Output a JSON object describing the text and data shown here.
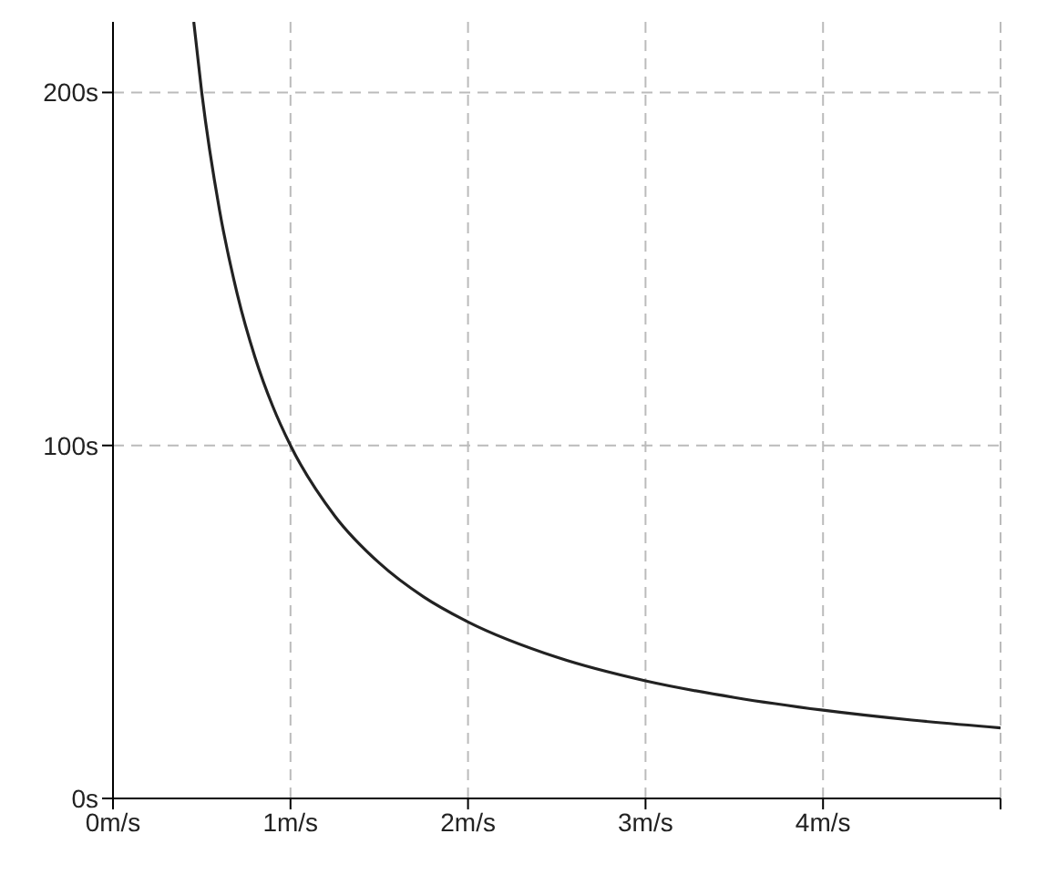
{
  "chart_data": {
    "type": "line",
    "x": [
      0.455,
      0.5,
      0.6,
      0.7,
      0.8,
      0.9,
      1,
      1.25,
      1.5,
      1.75,
      2,
      2.5,
      3,
      3.5,
      4,
      4.5,
      5
    ],
    "series": [
      {
        "color": "#222222",
        "values": [
          220,
          200,
          166.7,
          142.9,
          125,
          111.1,
          100,
          80,
          66.7,
          57.1,
          50,
          40,
          33.3,
          28.6,
          25,
          22.2,
          20
        ]
      }
    ],
    "xlim": [
      0,
      5
    ],
    "ylim": [
      0,
      220
    ],
    "xticks": [
      {
        "value": 0,
        "label": "0m/s"
      },
      {
        "value": 1,
        "label": "1m/s"
      },
      {
        "value": 2,
        "label": "2m/s"
      },
      {
        "value": 3,
        "label": "3m/s"
      },
      {
        "value": 4,
        "label": "4m/s"
      },
      {
        "value": 5,
        "label": null
      }
    ],
    "yticks": [
      {
        "value": 0,
        "label": "0s"
      },
      {
        "value": 100,
        "label": "100s"
      },
      {
        "value": 200,
        "label": "200s"
      }
    ],
    "grid": true,
    "marker": "none",
    "line_style": "solid"
  }
}
